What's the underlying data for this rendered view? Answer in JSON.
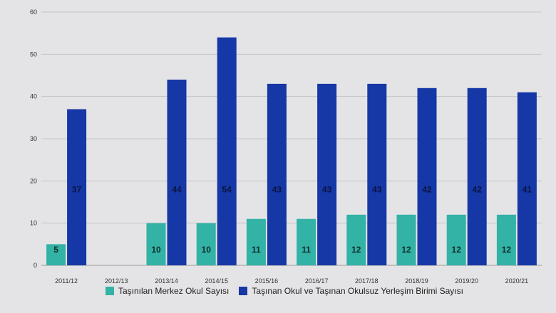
{
  "chart_data": {
    "type": "bar",
    "categories": [
      "2011/12",
      "2012/13",
      "2013/14",
      "2014/15",
      "2015/16",
      "2016/17",
      "2017/18",
      "2018/19",
      "2019/20",
      "2020/21"
    ],
    "series": [
      {
        "name": "Taşınılan Merkez Okul Sayısı",
        "color": "#33b2a6",
        "values": [
          5,
          null,
          10,
          10,
          11,
          11,
          12,
          12,
          12,
          12
        ],
        "labels": [
          "5",
          "",
          "10",
          "10",
          "11",
          "11",
          "12",
          "12",
          "12",
          "12"
        ]
      },
      {
        "name": "Taşınan Okul ve Taşınan Okulsuz Yerleşim Birimi Sayısı",
        "color": "#1637a6",
        "values": [
          37,
          null,
          44,
          54,
          43,
          43,
          43,
          42,
          42,
          41
        ],
        "labels": [
          "37",
          "",
          "44",
          "54",
          "43",
          "43",
          "43",
          "42",
          "42",
          "41"
        ]
      }
    ],
    "y_ticks": [
      "0",
      "10",
      "20",
      "30",
      "40",
      "50",
      "60"
    ],
    "ylim": [
      0,
      60
    ],
    "grid": true,
    "legend_position": "bottom"
  }
}
